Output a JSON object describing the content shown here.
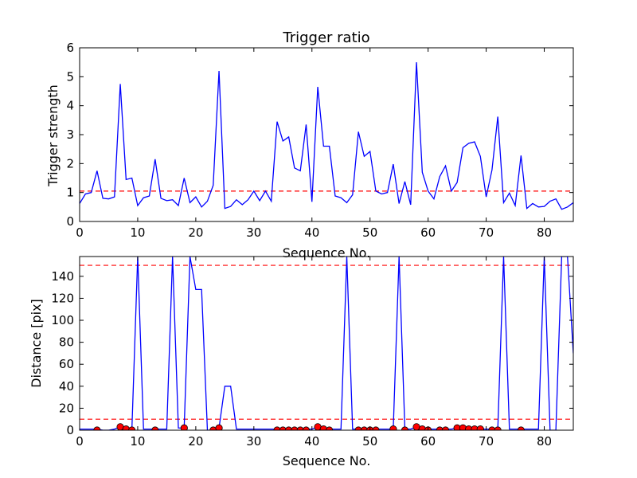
{
  "chart_data": [
    {
      "type": "line",
      "title": "Trigger ratio",
      "xlabel": "Sequence No.",
      "ylabel": "Trigger strength",
      "xlim": [
        0,
        85
      ],
      "ylim": [
        0,
        6
      ],
      "xticks": [
        0,
        10,
        20,
        30,
        40,
        50,
        60,
        70,
        80
      ],
      "yticks": [
        0,
        1,
        2,
        3,
        4,
        5,
        6
      ],
      "grid": false,
      "series": [
        {
          "color": "#0000ff",
          "style": "solid",
          "x": [
            0,
            1,
            2,
            3,
            4,
            5,
            6,
            7,
            8,
            9,
            10,
            11,
            12,
            13,
            14,
            15,
            16,
            17,
            18,
            19,
            20,
            21,
            22,
            23,
            24,
            25,
            26,
            27,
            28,
            29,
            30,
            31,
            32,
            33,
            34,
            35,
            36,
            37,
            38,
            39,
            40,
            41,
            42,
            43,
            44,
            45,
            46,
            47,
            48,
            49,
            50,
            51,
            52,
            53,
            54,
            55,
            56,
            57,
            58,
            59,
            60,
            61,
            62,
            63,
            64,
            65,
            66,
            67,
            68,
            69,
            70,
            71,
            72,
            73,
            74,
            75,
            76,
            77,
            78,
            79,
            80,
            81,
            82,
            83,
            84,
            85
          ],
          "y": [
            0.62,
            0.95,
            1.0,
            1.75,
            0.8,
            0.78,
            0.85,
            4.75,
            1.45,
            1.5,
            0.55,
            0.82,
            0.88,
            2.15,
            0.8,
            0.72,
            0.75,
            0.55,
            1.5,
            0.65,
            0.85,
            0.5,
            0.7,
            1.25,
            5.2,
            0.45,
            0.52,
            0.75,
            0.58,
            0.75,
            1.05,
            0.72,
            1.05,
            0.7,
            3.45,
            2.78,
            2.92,
            1.85,
            1.75,
            3.35,
            0.68,
            4.65,
            2.6,
            2.6,
            0.88,
            0.82,
            0.65,
            0.92,
            3.1,
            2.25,
            2.42,
            1.05,
            0.95,
            1.0,
            1.98,
            0.62,
            1.38,
            0.58,
            5.5,
            1.7,
            1.05,
            0.78,
            1.55,
            1.92,
            1.05,
            1.35,
            2.55,
            2.7,
            2.75,
            2.25,
            0.85,
            1.78,
            3.62,
            0.65,
            0.98,
            0.55,
            2.28,
            0.45,
            0.62,
            0.5,
            0.52,
            0.7,
            0.78,
            0.42,
            0.5,
            0.65
          ]
        }
      ],
      "hlines": [
        {
          "y": 1.05,
          "color": "#ff0000",
          "style": "dashed"
        }
      ]
    },
    {
      "type": "line",
      "title": "",
      "xlabel": "Sequence No.",
      "ylabel": "Distance [pix]",
      "xlim": [
        0,
        85
      ],
      "ylim": [
        0,
        158
      ],
      "xticks": [
        0,
        10,
        20,
        30,
        40,
        50,
        60,
        70,
        80
      ],
      "yticks": [
        0,
        20,
        40,
        60,
        80,
        100,
        120,
        140
      ],
      "grid": false,
      "series": [
        {
          "color": "#0000ff",
          "style": "solid",
          "x": [
            0,
            2,
            3,
            4,
            5,
            6,
            7,
            8,
            9,
            10,
            11,
            12,
            13,
            14,
            15,
            16,
            17,
            18,
            19,
            20,
            21,
            22,
            23,
            24,
            25,
            26,
            27,
            30,
            33,
            34,
            35,
            36,
            37,
            38,
            39,
            40,
            41,
            42,
            43,
            44,
            45,
            46,
            47,
            48,
            49,
            50,
            51,
            52,
            53,
            54,
            55,
            56,
            57,
            58,
            59,
            60,
            61,
            62,
            63,
            64,
            65,
            66,
            67,
            68,
            69,
            70,
            71,
            72,
            73,
            74,
            75,
            76,
            77,
            78,
            79,
            80,
            81,
            82,
            83,
            84,
            85
          ],
          "y": [
            1,
            1,
            1,
            0,
            0,
            1,
            3,
            2,
            1,
            158,
            1,
            1,
            1,
            1,
            1,
            158,
            2,
            2,
            158,
            128,
            128,
            0,
            0,
            2,
            40,
            40,
            1,
            1,
            1,
            1,
            1,
            1,
            1,
            1,
            1,
            1,
            3,
            1,
            1,
            1,
            1,
            158,
            1,
            1,
            1,
            1,
            1,
            1,
            1,
            1,
            158,
            1,
            1,
            3,
            1,
            1,
            1,
            1,
            1,
            1,
            2,
            2,
            1,
            1,
            1,
            1,
            1,
            1,
            158,
            1,
            1,
            1,
            1,
            1,
            1,
            158,
            0,
            0,
            158,
            158,
            70
          ]
        },
        {
          "name": "",
          "type": "scatter",
          "color": "#ff0000",
          "marker": "circle",
          "x": [
            3,
            7,
            8,
            9,
            13,
            18,
            23,
            24,
            34,
            35,
            36,
            37,
            38,
            39,
            41,
            42,
            43,
            48,
            49,
            50,
            51,
            54,
            56,
            58,
            59,
            60,
            62,
            63,
            65,
            66,
            67,
            68,
            69,
            71,
            72,
            76
          ],
          "y": [
            0,
            3,
            1,
            0,
            0,
            2,
            0,
            2,
            0,
            0,
            0,
            0,
            0,
            0,
            3,
            1,
            0,
            0,
            0,
            0,
            0,
            1,
            0,
            3,
            1,
            0,
            0,
            0,
            2,
            2,
            1,
            1,
            1,
            0,
            0,
            0
          ]
        }
      ],
      "hlines": [
        {
          "y": 10,
          "color": "#ff0000",
          "style": "dashed"
        },
        {
          "y": 150,
          "color": "#ff0000",
          "style": "dashed"
        }
      ]
    }
  ]
}
